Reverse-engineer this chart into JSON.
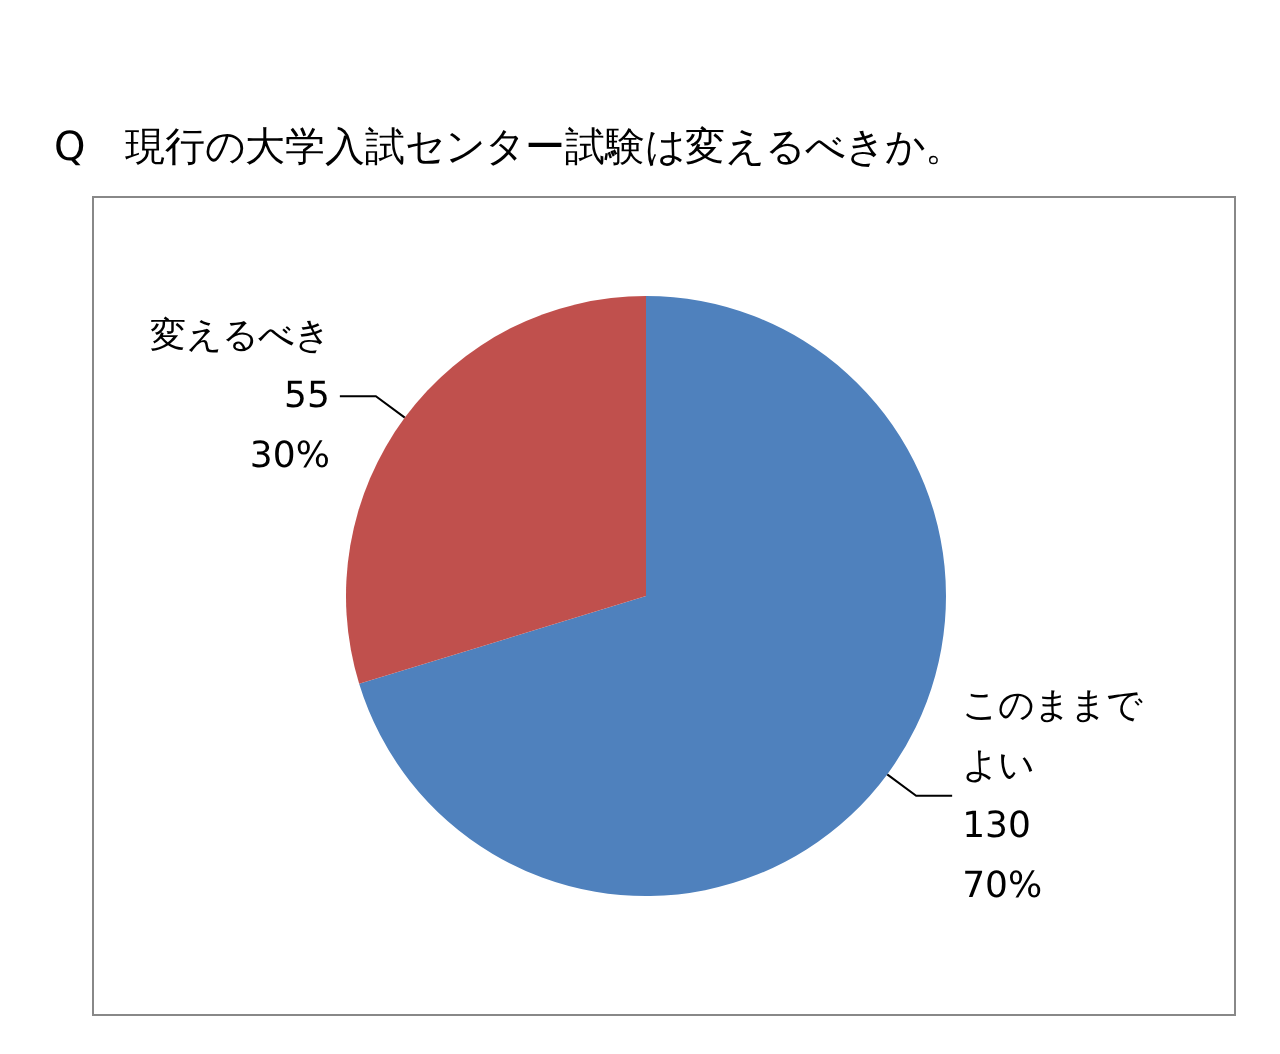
{
  "chart_data": {
    "type": "pie",
    "title": "Q　現行の大学入試センター試験は変えるべきか。",
    "categories": [
      "このままでよい",
      "変えるべき"
    ],
    "values": [
      130,
      55
    ],
    "colors": [
      "#4f81bd",
      "#c0504d"
    ],
    "value_labels": [
      "130\n70%",
      "55\n30%"
    ],
    "legend": false
  }
}
